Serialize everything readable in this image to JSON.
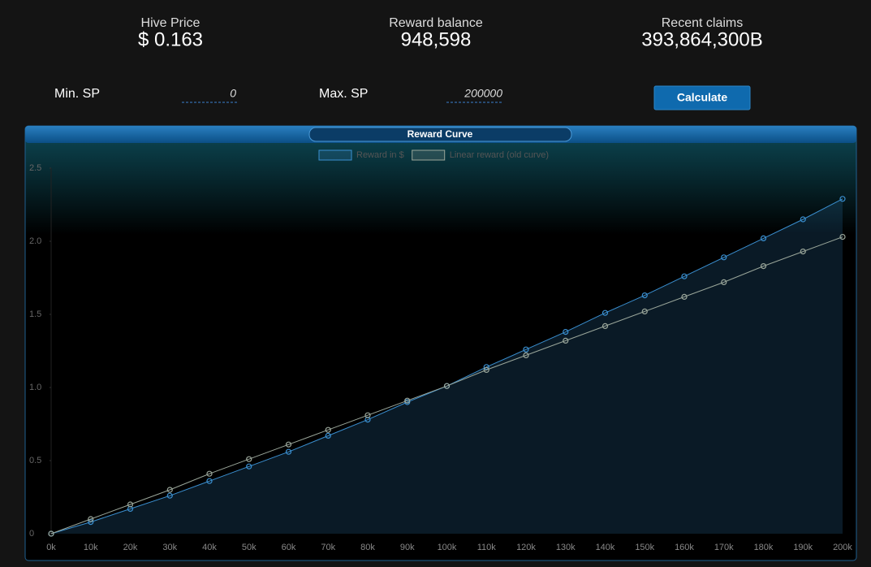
{
  "header": {
    "stats": [
      {
        "label": "Hive Price",
        "value": "$ 0.163"
      },
      {
        "label": "Reward balance",
        "value": "948,598"
      },
      {
        "label": "Recent claims",
        "value": "393,864,300B"
      }
    ]
  },
  "form": {
    "min_label": "Min. SP",
    "min_value": 0,
    "max_label": "Max. SP",
    "max_value": 200000,
    "button": "Calculate"
  },
  "chart_data": {
    "type": "line",
    "title": "Reward Curve",
    "categories": [
      "0k",
      "10k",
      "20k",
      "30k",
      "40k",
      "50k",
      "60k",
      "70k",
      "80k",
      "90k",
      "100k",
      "110k",
      "120k",
      "130k",
      "140k",
      "150k",
      "160k",
      "170k",
      "180k",
      "190k",
      "200k"
    ],
    "series": [
      {
        "name": "Reward in $",
        "color": "#3a8fd0",
        "fill": true,
        "values": [
          0,
          0.08,
          0.17,
          0.26,
          0.36,
          0.46,
          0.56,
          0.67,
          0.78,
          0.9,
          1.01,
          1.14,
          1.26,
          1.38,
          1.51,
          1.63,
          1.76,
          1.89,
          2.02,
          2.15,
          2.29
        ]
      },
      {
        "name": "Linear reward (old curve)",
        "color": "#9aa69a",
        "fill": false,
        "values": [
          0,
          0.1,
          0.2,
          0.3,
          0.41,
          0.51,
          0.61,
          0.71,
          0.81,
          0.91,
          1.01,
          1.12,
          1.22,
          1.32,
          1.42,
          1.52,
          1.62,
          1.72,
          1.83,
          1.93,
          2.03
        ]
      }
    ],
    "ylim": [
      0,
      2.5
    ],
    "yticks": [
      0,
      0.5,
      {
        "value": 1,
        "label": "1.0"
      },
      1.5,
      {
        "value": 2,
        "label": "2.0"
      },
      2.5
    ]
  }
}
